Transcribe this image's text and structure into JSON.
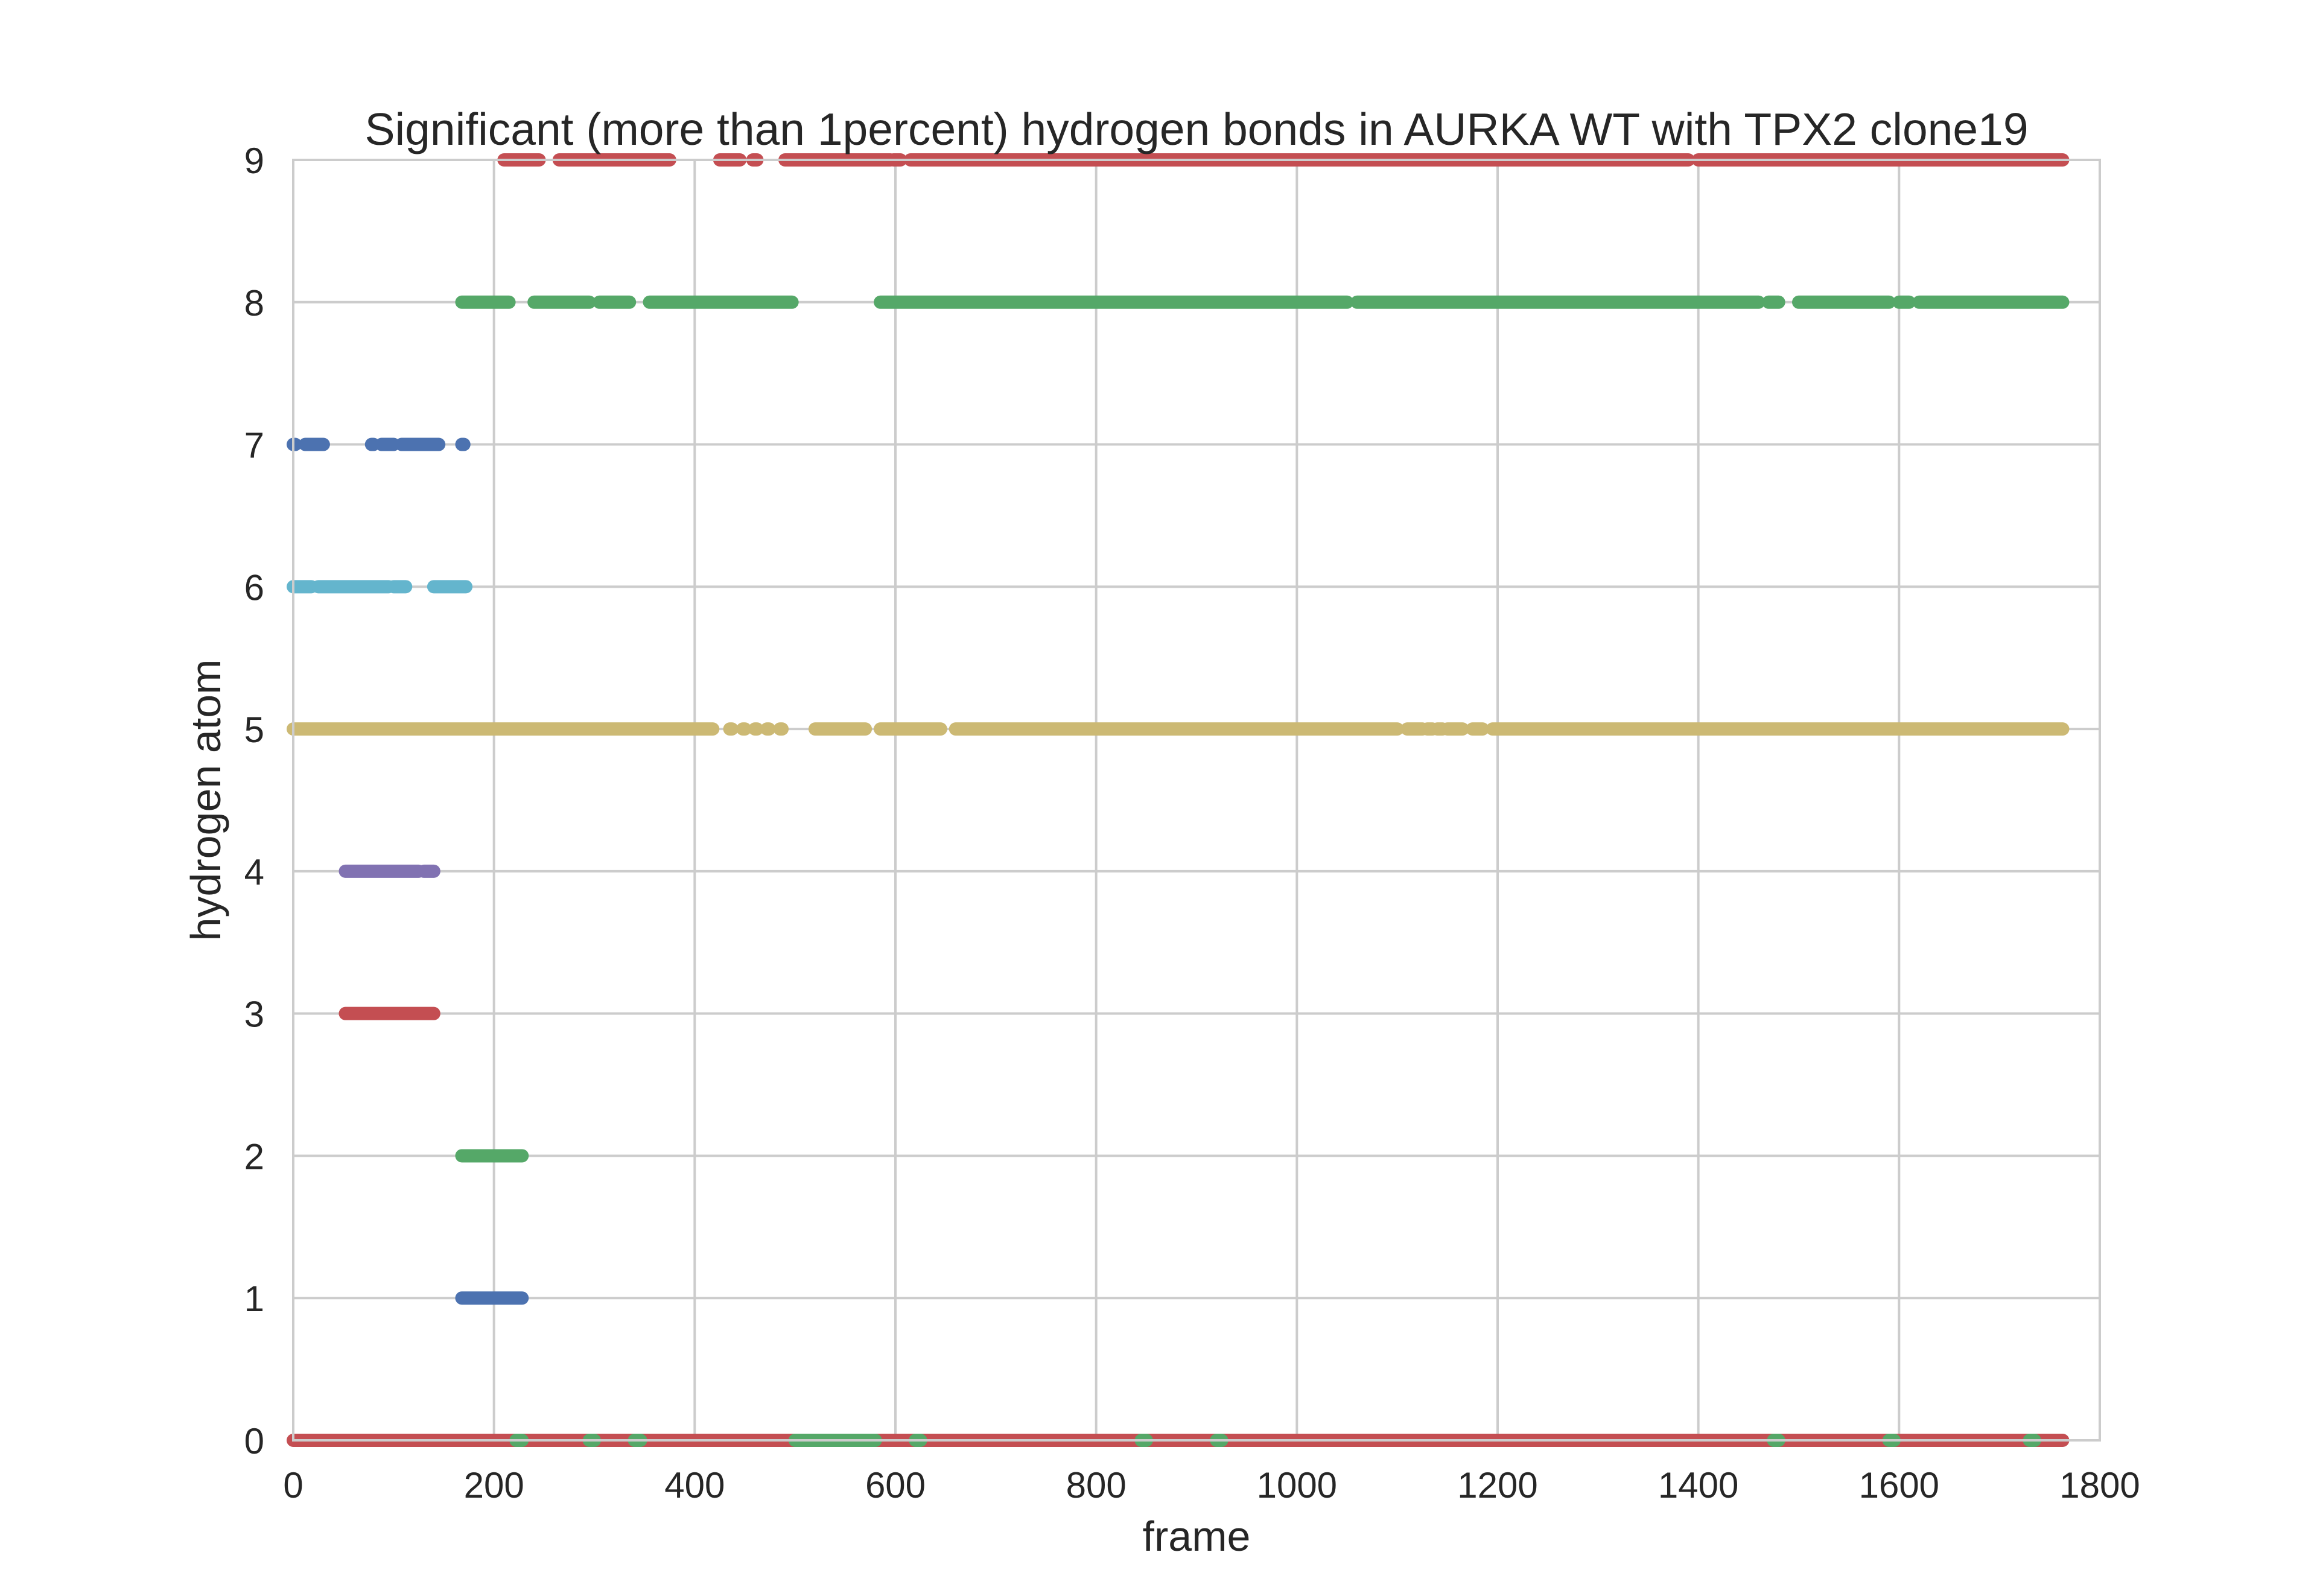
{
  "chart_data": {
    "type": "scatter",
    "title": "Significant (more than 1percent) hydrogen bonds in AURKA WT with TPX2 clone19",
    "xlabel": "frame",
    "ylabel": "hydrogen atom",
    "xlim": [
      0,
      1800
    ],
    "ylim": [
      0,
      9
    ],
    "x_ticks": [
      "0",
      "200",
      "400",
      "600",
      "800",
      "1000",
      "1200",
      "1400",
      "1600",
      "1800"
    ],
    "y_ticks": [
      "0",
      "1",
      "2",
      "3",
      "4",
      "5",
      "6",
      "7",
      "8",
      "9"
    ],
    "grid": true,
    "legend": "none",
    "background": "#ffffff",
    "grid_color": "#cccccc",
    "series": [
      {
        "y": 0,
        "color": "#c44e52",
        "segments": [
          [
            0,
            1763
          ]
        ]
      },
      {
        "y": 0,
        "color": "#55a868",
        "segments": [
          [
            222,
            228
          ],
          [
            295,
            300
          ],
          [
            340,
            346
          ],
          [
            500,
            580
          ],
          [
            620,
            625
          ],
          [
            845,
            850
          ],
          [
            920,
            925
          ],
          [
            1475,
            1480
          ],
          [
            1590,
            1595
          ],
          [
            1730,
            1735
          ]
        ]
      },
      {
        "y": 1,
        "color": "#4c72b0",
        "segments": [
          [
            168,
            228
          ]
        ]
      },
      {
        "y": 2,
        "color": "#55a868",
        "segments": [
          [
            168,
            228
          ]
        ]
      },
      {
        "y": 3,
        "color": "#c44e52",
        "segments": [
          [
            52,
            140
          ]
        ]
      },
      {
        "y": 4,
        "color": "#8172b2",
        "segments": [
          [
            52,
            125
          ],
          [
            130,
            140
          ]
        ]
      },
      {
        "y": 5,
        "color": "#ccb974",
        "segments": [
          [
            0,
            418
          ],
          [
            435,
            437
          ],
          [
            448,
            450
          ],
          [
            460,
            462
          ],
          [
            472,
            474
          ],
          [
            485,
            487
          ],
          [
            520,
            570
          ],
          [
            585,
            645
          ],
          [
            660,
            1100
          ],
          [
            1110,
            1125
          ],
          [
            1130,
            1135
          ],
          [
            1140,
            1145
          ],
          [
            1150,
            1165
          ],
          [
            1175,
            1185
          ],
          [
            1195,
            1763
          ]
        ]
      },
      {
        "y": 6,
        "color": "#64b5cd",
        "segments": [
          [
            0,
            18
          ],
          [
            25,
            95
          ],
          [
            100,
            112
          ],
          [
            140,
            172
          ]
        ]
      },
      {
        "y": 7,
        "color": "#4c72b0",
        "segments": [
          [
            0,
            2
          ],
          [
            12,
            30
          ],
          [
            78,
            80
          ],
          [
            88,
            100
          ],
          [
            108,
            145
          ],
          [
            168,
            170
          ]
        ]
      },
      {
        "y": 8,
        "color": "#55a868",
        "segments": [
          [
            168,
            215
          ],
          [
            240,
            295
          ],
          [
            305,
            335
          ],
          [
            355,
            497
          ],
          [
            585,
            1050
          ],
          [
            1060,
            1460
          ],
          [
            1470,
            1480
          ],
          [
            1500,
            1590
          ],
          [
            1600,
            1610
          ],
          [
            1620,
            1763
          ]
        ]
      },
      {
        "y": 9,
        "color": "#c44e52",
        "segments": [
          [
            210,
            245
          ],
          [
            265,
            375
          ],
          [
            425,
            445
          ],
          [
            458,
            462
          ],
          [
            490,
            595
          ],
          [
            598,
            605
          ],
          [
            615,
            1390
          ],
          [
            1400,
            1763
          ]
        ]
      }
    ]
  }
}
